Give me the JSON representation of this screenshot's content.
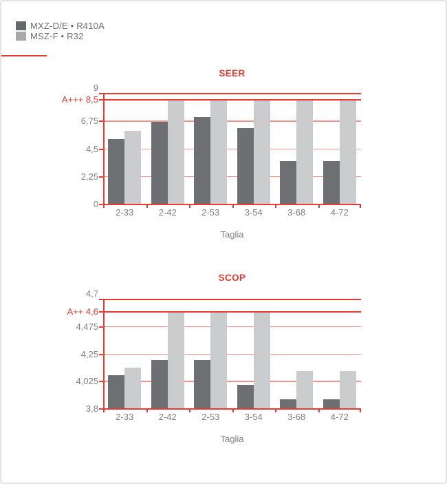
{
  "colors": {
    "accent_red": "#e73b34",
    "grid_pink": "#f4918c",
    "bar_dark": "#6e6f72",
    "bar_light": "#cbccce",
    "legend_swatch_dark": "#67686b",
    "legend_swatch_light": "#a7a8ab",
    "tick_text_gray": "#808184",
    "legend_text_gray": "#6d6e70",
    "card_border_gray": "#e2e3e5"
  },
  "legend": {
    "items": [
      {
        "label": "MXZ-D/E • R410A",
        "color": "#67686b"
      },
      {
        "label": "MSZ-F • R32",
        "color": "#a7a8ab"
      }
    ]
  },
  "chart_data": [
    {
      "type": "bar",
      "title": "SEER",
      "xlabel": "Taglia",
      "categories": [
        "2-33",
        "2-42",
        "2-53",
        "3-54",
        "3-68",
        "4-72"
      ],
      "series": [
        {
          "name": "MXZ-D/E • R410A",
          "values": [
            5.3,
            6.7,
            7.1,
            6.2,
            3.5,
            3.5
          ]
        },
        {
          "name": "MSZ-F • R32",
          "values": [
            6.0,
            8.5,
            8.5,
            8.5,
            8.5,
            8.5
          ]
        }
      ],
      "ylim": [
        0,
        9
      ],
      "yticks": [
        {
          "value": 9,
          "label": "9"
        },
        {
          "value": 6.75,
          "label": "6,75"
        },
        {
          "value": 4.5,
          "label": "4,5"
        },
        {
          "value": 2.25,
          "label": "2,25"
        },
        {
          "value": 0,
          "label": "0"
        }
      ],
      "rating_line": {
        "value": 8.5,
        "label": "A+++ 8,5"
      },
      "grid": true,
      "legend_position": "top-left of page"
    },
    {
      "type": "bar",
      "title": "SCOP",
      "xlabel": "Taglia",
      "categories": [
        "2-33",
        "2-42",
        "2-53",
        "3-54",
        "3-68",
        "4-72"
      ],
      "series": [
        {
          "name": "MXZ-D/E • R410A",
          "values": [
            4.08,
            4.2,
            4.2,
            4.0,
            3.88,
            3.88
          ]
        },
        {
          "name": "MSZ-F • R32",
          "values": [
            4.14,
            4.6,
            4.6,
            4.6,
            4.11,
            4.11
          ]
        }
      ],
      "ylim": [
        3.8,
        4.7
      ],
      "yticks": [
        {
          "value": 4.7,
          "label": "4,7"
        },
        {
          "value": 4.475,
          "label": "4,475"
        },
        {
          "value": 4.25,
          "label": "4,25"
        },
        {
          "value": 4.025,
          "label": "4,025"
        },
        {
          "value": 3.8,
          "label": "3,8"
        }
      ],
      "rating_line": {
        "value": 4.6,
        "label": "A++ 4,6"
      },
      "grid": true,
      "legend_position": "top-left of page"
    }
  ]
}
